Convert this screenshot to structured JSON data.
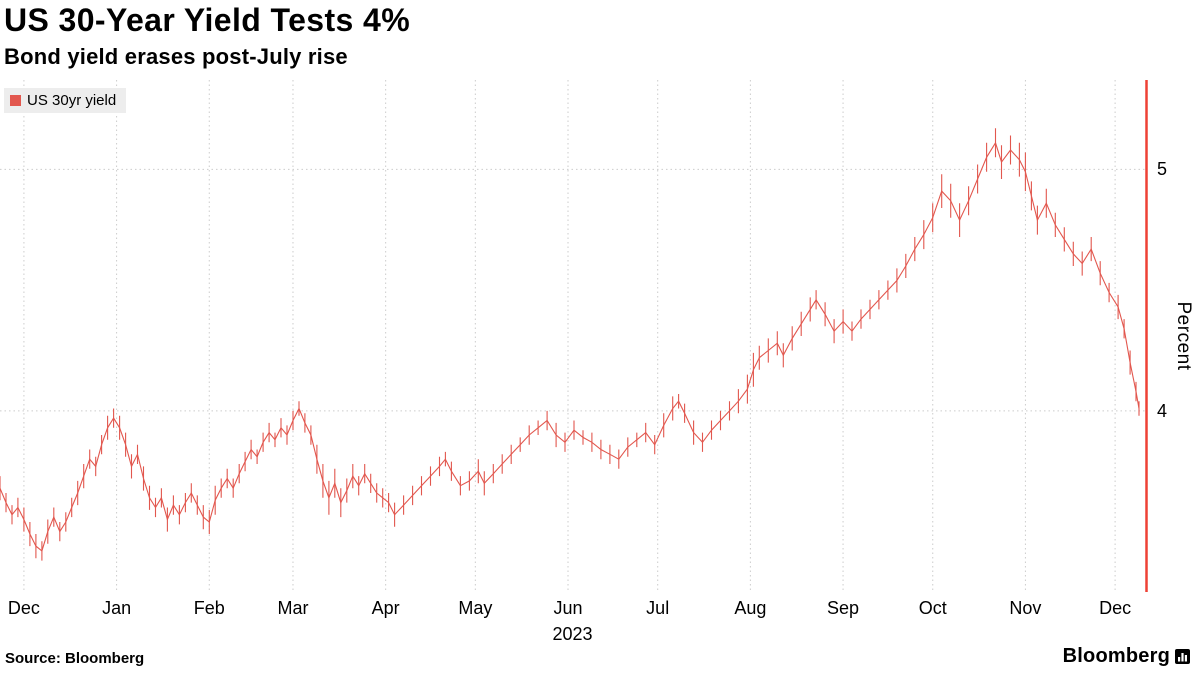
{
  "colors": {
    "line": "#e2574e",
    "axis": "#ee4135",
    "grid": "#cccccc",
    "legend_bg": "#ededed",
    "text": "#000000"
  },
  "header": {
    "title": "US 30-Year Yield Tests 4%",
    "subtitle": "Bond yield erases post-July rise"
  },
  "legend": {
    "label": "US 30yr yield"
  },
  "axis": {
    "ylabel": "Percent",
    "year": "2023"
  },
  "footer": {
    "source": "Source: Bloomberg",
    "logo_text": "Bloomberg"
  },
  "chart_data": {
    "type": "line",
    "title": "US 30-Year Yield Tests 4%",
    "subtitle": "Bond yield erases post-July rise",
    "series": [
      {
        "name": "US 30yr yield",
        "color": "#e2574e"
      }
    ],
    "ylabel": "Percent",
    "x_unit": "days since 2022-12-01",
    "x_domain": [
      -8,
      375
    ],
    "ylim": [
      3.25,
      5.37
    ],
    "yticks": [
      4,
      5
    ],
    "grid": true,
    "legend_position": "top-left",
    "year_label": "2023",
    "month_ticks": [
      {
        "label": "Dec",
        "d": 0
      },
      {
        "label": "Jan",
        "d": 31
      },
      {
        "label": "Feb",
        "d": 62
      },
      {
        "label": "Mar",
        "d": 90
      },
      {
        "label": "Apr",
        "d": 121
      },
      {
        "label": "May",
        "d": 151
      },
      {
        "label": "Jun",
        "d": 182
      },
      {
        "label": "Jul",
        "d": 212
      },
      {
        "label": "Aug",
        "d": 243
      },
      {
        "label": "Sep",
        "d": 274
      },
      {
        "label": "Oct",
        "d": 304
      },
      {
        "label": "Nov",
        "d": 335
      },
      {
        "label": "Dec",
        "d": 365
      }
    ],
    "points_format": [
      "day",
      "yield_pct",
      "half_range_pct"
    ],
    "points": [
      [
        -8,
        3.68,
        0.05
      ],
      [
        -6,
        3.62,
        0.04
      ],
      [
        -4,
        3.57,
        0.04
      ],
      [
        -2,
        3.6,
        0.04
      ],
      [
        0,
        3.55,
        0.05
      ],
      [
        2,
        3.49,
        0.05
      ],
      [
        4,
        3.44,
        0.05
      ],
      [
        6,
        3.42,
        0.04
      ],
      [
        8,
        3.5,
        0.05
      ],
      [
        10,
        3.56,
        0.04
      ],
      [
        12,
        3.5,
        0.04
      ],
      [
        14,
        3.54,
        0.04
      ],
      [
        16,
        3.6,
        0.04
      ],
      [
        18,
        3.66,
        0.05
      ],
      [
        20,
        3.73,
        0.05
      ],
      [
        22,
        3.8,
        0.04
      ],
      [
        24,
        3.77,
        0.04
      ],
      [
        26,
        3.86,
        0.04
      ],
      [
        28,
        3.93,
        0.05
      ],
      [
        30,
        3.97,
        0.04
      ],
      [
        32,
        3.93,
        0.05
      ],
      [
        34,
        3.86,
        0.05
      ],
      [
        36,
        3.77,
        0.05
      ],
      [
        38,
        3.82,
        0.04
      ],
      [
        40,
        3.72,
        0.05
      ],
      [
        42,
        3.64,
        0.05
      ],
      [
        44,
        3.6,
        0.04
      ],
      [
        46,
        3.64,
        0.04
      ],
      [
        48,
        3.55,
        0.05
      ],
      [
        50,
        3.61,
        0.04
      ],
      [
        52,
        3.57,
        0.04
      ],
      [
        54,
        3.62,
        0.04
      ],
      [
        56,
        3.66,
        0.04
      ],
      [
        58,
        3.61,
        0.04
      ],
      [
        60,
        3.56,
        0.05
      ],
      [
        62,
        3.54,
        0.05
      ],
      [
        64,
        3.63,
        0.06
      ],
      [
        66,
        3.68,
        0.04
      ],
      [
        68,
        3.72,
        0.04
      ],
      [
        70,
        3.68,
        0.04
      ],
      [
        72,
        3.74,
        0.04
      ],
      [
        74,
        3.79,
        0.04
      ],
      [
        76,
        3.84,
        0.04
      ],
      [
        78,
        3.81,
        0.03
      ],
      [
        80,
        3.87,
        0.04
      ],
      [
        82,
        3.91,
        0.04
      ],
      [
        84,
        3.88,
        0.03
      ],
      [
        86,
        3.93,
        0.04
      ],
      [
        88,
        3.9,
        0.04
      ],
      [
        90,
        3.96,
        0.04
      ],
      [
        92,
        4.01,
        0.03
      ],
      [
        94,
        3.95,
        0.04
      ],
      [
        96,
        3.9,
        0.04
      ],
      [
        98,
        3.8,
        0.06
      ],
      [
        100,
        3.71,
        0.07
      ],
      [
        102,
        3.64,
        0.07
      ],
      [
        104,
        3.7,
        0.06
      ],
      [
        106,
        3.62,
        0.06
      ],
      [
        108,
        3.67,
        0.05
      ],
      [
        110,
        3.73,
        0.05
      ],
      [
        112,
        3.69,
        0.04
      ],
      [
        114,
        3.74,
        0.04
      ],
      [
        116,
        3.7,
        0.04
      ],
      [
        118,
        3.66,
        0.04
      ],
      [
        120,
        3.64,
        0.04
      ],
      [
        122,
        3.62,
        0.04
      ],
      [
        124,
        3.57,
        0.05
      ],
      [
        127,
        3.61,
        0.04
      ],
      [
        130,
        3.65,
        0.04
      ],
      [
        133,
        3.69,
        0.04
      ],
      [
        136,
        3.73,
        0.04
      ],
      [
        139,
        3.77,
        0.04
      ],
      [
        141,
        3.8,
        0.03
      ],
      [
        143,
        3.75,
        0.04
      ],
      [
        146,
        3.69,
        0.04
      ],
      [
        149,
        3.71,
        0.04
      ],
      [
        152,
        3.75,
        0.05
      ],
      [
        154,
        3.7,
        0.05
      ],
      [
        157,
        3.74,
        0.04
      ],
      [
        160,
        3.78,
        0.04
      ],
      [
        163,
        3.82,
        0.04
      ],
      [
        166,
        3.86,
        0.03
      ],
      [
        169,
        3.9,
        0.04
      ],
      [
        172,
        3.93,
        0.03
      ],
      [
        175,
        3.96,
        0.04
      ],
      [
        178,
        3.9,
        0.05
      ],
      [
        181,
        3.87,
        0.04
      ],
      [
        184,
        3.92,
        0.04
      ],
      [
        187,
        3.89,
        0.03
      ],
      [
        190,
        3.87,
        0.04
      ],
      [
        193,
        3.84,
        0.04
      ],
      [
        196,
        3.82,
        0.04
      ],
      [
        199,
        3.8,
        0.04
      ],
      [
        202,
        3.85,
        0.04
      ],
      [
        205,
        3.88,
        0.03
      ],
      [
        208,
        3.91,
        0.04
      ],
      [
        211,
        3.86,
        0.04
      ],
      [
        214,
        3.94,
        0.05
      ],
      [
        217,
        4.01,
        0.05
      ],
      [
        219,
        4.04,
        0.03
      ],
      [
        221,
        3.99,
        0.04
      ],
      [
        224,
        3.91,
        0.05
      ],
      [
        227,
        3.87,
        0.04
      ],
      [
        230,
        3.92,
        0.04
      ],
      [
        233,
        3.96,
        0.04
      ],
      [
        236,
        4.0,
        0.04
      ],
      [
        239,
        4.04,
        0.05
      ],
      [
        242,
        4.09,
        0.06
      ],
      [
        244,
        4.17,
        0.07
      ],
      [
        246,
        4.22,
        0.05
      ],
      [
        249,
        4.25,
        0.05
      ],
      [
        252,
        4.28,
        0.05
      ],
      [
        254,
        4.23,
        0.05
      ],
      [
        257,
        4.3,
        0.05
      ],
      [
        260,
        4.36,
        0.05
      ],
      [
        263,
        4.42,
        0.05
      ],
      [
        265,
        4.46,
        0.04
      ],
      [
        268,
        4.4,
        0.05
      ],
      [
        271,
        4.33,
        0.05
      ],
      [
        274,
        4.37,
        0.05
      ],
      [
        277,
        4.33,
        0.04
      ],
      [
        280,
        4.38,
        0.04
      ],
      [
        283,
        4.42,
        0.04
      ],
      [
        286,
        4.46,
        0.04
      ],
      [
        289,
        4.5,
        0.04
      ],
      [
        292,
        4.54,
        0.05
      ],
      [
        295,
        4.6,
        0.05
      ],
      [
        298,
        4.67,
        0.05
      ],
      [
        301,
        4.73,
        0.06
      ],
      [
        304,
        4.8,
        0.06
      ],
      [
        307,
        4.91,
        0.07
      ],
      [
        310,
        4.87,
        0.07
      ],
      [
        313,
        4.79,
        0.07
      ],
      [
        316,
        4.87,
        0.06
      ],
      [
        319,
        4.96,
        0.06
      ],
      [
        322,
        5.05,
        0.06
      ],
      [
        325,
        5.11,
        0.06
      ],
      [
        327,
        5.03,
        0.07
      ],
      [
        330,
        5.08,
        0.06
      ],
      [
        333,
        5.04,
        0.07
      ],
      [
        335,
        4.99,
        0.08
      ],
      [
        337,
        4.89,
        0.06
      ],
      [
        339,
        4.79,
        0.06
      ],
      [
        342,
        4.86,
        0.06
      ],
      [
        345,
        4.77,
        0.05
      ],
      [
        348,
        4.71,
        0.05
      ],
      [
        351,
        4.65,
        0.05
      ],
      [
        354,
        4.61,
        0.05
      ],
      [
        357,
        4.67,
        0.05
      ],
      [
        360,
        4.57,
        0.05
      ],
      [
        363,
        4.49,
        0.04
      ],
      [
        366,
        4.43,
        0.05
      ],
      [
        368,
        4.34,
        0.04
      ],
      [
        370,
        4.2,
        0.05
      ],
      [
        372,
        4.08,
        0.04
      ],
      [
        373,
        4.01,
        0.03
      ]
    ]
  }
}
